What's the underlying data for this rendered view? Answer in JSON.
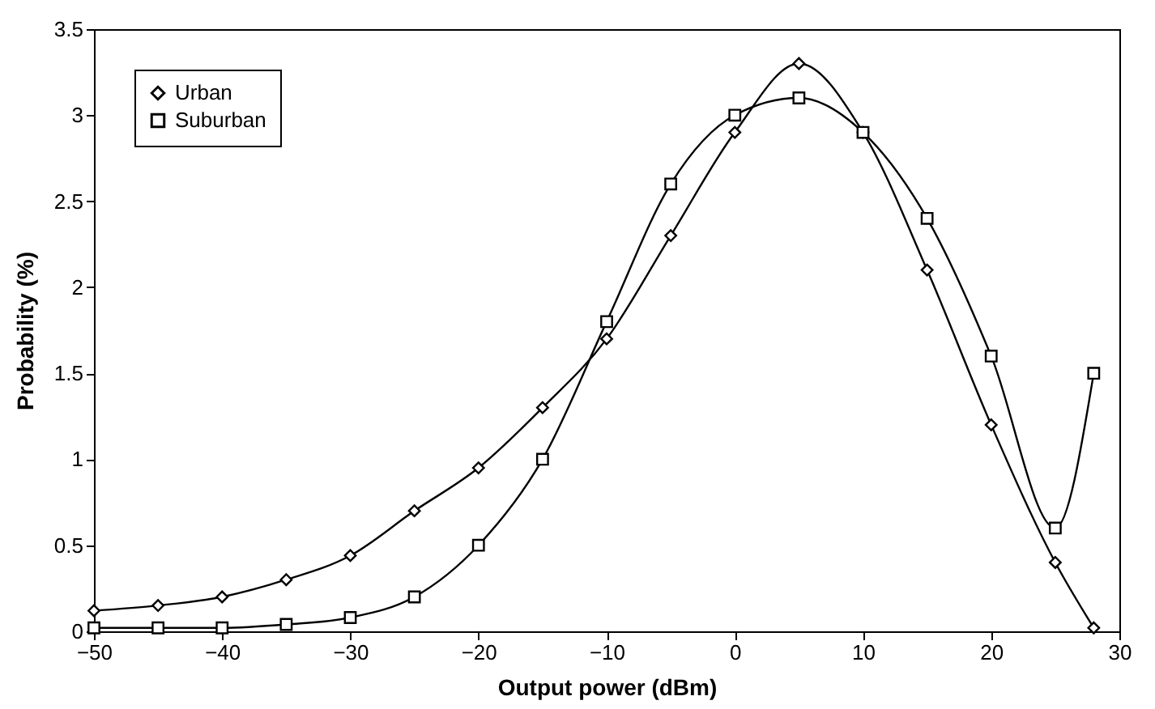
{
  "chart_data": {
    "type": "line",
    "xlabel": "Output power (dBm)",
    "ylabel": "Probability (%)",
    "x": [
      -50,
      -45,
      -40,
      -35,
      -30,
      -25,
      -20,
      -15,
      -10,
      -5,
      0,
      5,
      10,
      15,
      20,
      25,
      28
    ],
    "series": [
      {
        "name": "Urban",
        "color": "#000000",
        "marker": "diamond",
        "values": [
          0.12,
          0.15,
          0.2,
          0.3,
          0.44,
          0.7,
          0.95,
          1.3,
          1.7,
          2.3,
          2.9,
          3.3,
          2.9,
          2.1,
          1.2,
          0.4,
          0.02
        ]
      },
      {
        "name": "Suburban",
        "color": "#000000",
        "marker": "square",
        "values": [
          0.02,
          0.02,
          0.02,
          0.04,
          0.08,
          0.2,
          0.5,
          1.0,
          1.8,
          2.6,
          3.0,
          3.1,
          2.9,
          2.4,
          1.6,
          0.6,
          1.5
        ]
      }
    ],
    "xlim": [
      -50,
      30
    ],
    "xticks": [
      -50,
      -40,
      -30,
      -20,
      -10,
      0,
      10,
      20,
      30
    ],
    "ylim": [
      0,
      3.5
    ],
    "yticks": [
      0,
      0.5,
      1,
      1.5,
      2,
      2.5,
      3,
      3.5
    ],
    "grid": false,
    "legend": "top left",
    "line_style": "solid"
  }
}
